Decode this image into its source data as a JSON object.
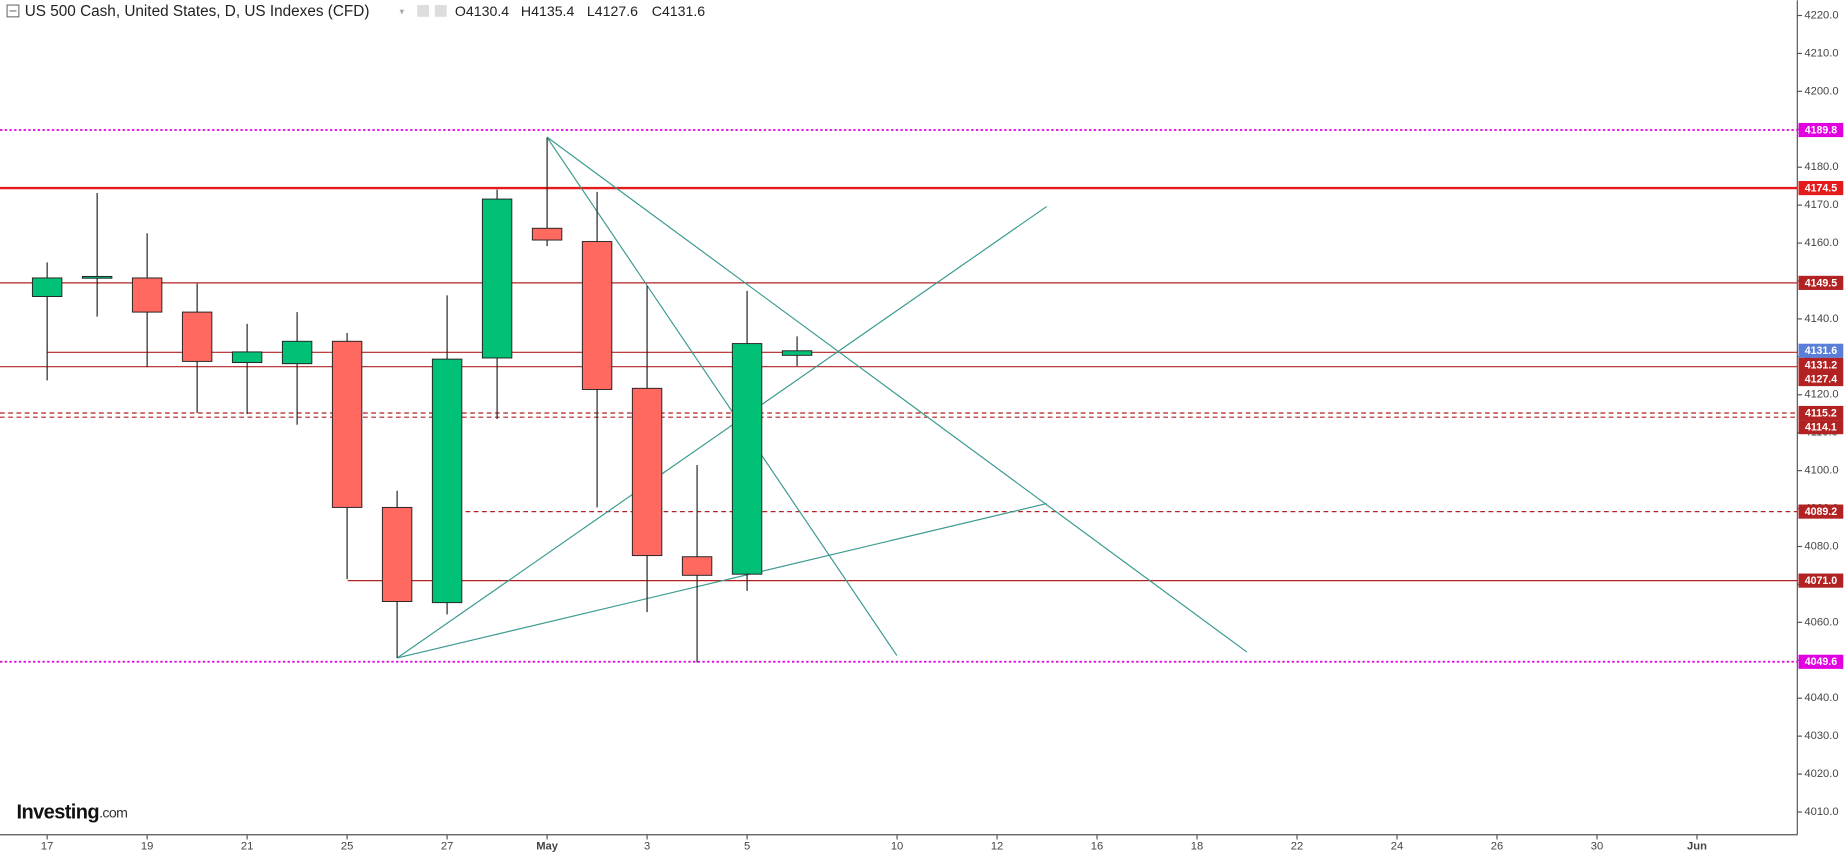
{
  "header": {
    "symbol": "US 500 Cash, United States, D, US Indexes (CFD)",
    "ohlc": [
      "O4130.4",
      "H4135.4",
      "L4127.6",
      "C4131.6"
    ]
  },
  "watermark": {
    "brand": "Investing",
    "suffix": ".com"
  },
  "chart_data": {
    "type": "candlestick",
    "categories": [
      "17",
      null,
      "19",
      null,
      "21",
      null,
      "25",
      null,
      "27",
      null,
      "May",
      null,
      "3",
      null,
      "5",
      null,
      null,
      "10",
      null,
      "12",
      null,
      "16",
      null,
      "18",
      null,
      "22",
      null,
      "24",
      null,
      "26",
      null,
      "30",
      null,
      "Jun"
    ],
    "open": [
      4145.9,
      4151.0,
      4150.8,
      4141.8,
      4128.5,
      4128.2,
      4134.1,
      4090.3,
      4065.2,
      4129.7,
      4163.9,
      4160.4,
      4121.7,
      4077.3,
      4072.7,
      4130.4,
      null,
      null,
      null,
      null,
      null,
      null,
      null,
      null,
      null,
      null,
      null,
      null,
      null,
      null,
      null,
      null,
      null,
      null
    ],
    "high": [
      4154.9,
      4173.2,
      4162.6,
      4149.3,
      4138.7,
      4141.8,
      4136.3,
      4094.7,
      4146.2,
      4174.1,
      4187.7,
      4173.5,
      4148.7,
      4101.5,
      4147.4,
      4135.4,
      null,
      null,
      null,
      null,
      null,
      null,
      null,
      null,
      null,
      null,
      null,
      null,
      null,
      null,
      null,
      null,
      null,
      null
    ],
    "low": [
      4123.8,
      4140.6,
      4127.3,
      4115.2,
      4114.9,
      4112.1,
      4071.4,
      4050.6,
      4062.1,
      4113.6,
      4159.2,
      4090.3,
      4062.7,
      4049.4,
      4068.3,
      4127.6,
      null,
      null,
      null,
      null,
      null,
      null,
      null,
      null,
      null,
      null,
      null,
      null,
      null,
      null,
      null,
      null,
      null,
      null
    ],
    "close": [
      4150.8,
      4151.2,
      4141.8,
      4128.8,
      4131.3,
      4134.1,
      4090.3,
      4065.5,
      4129.4,
      4171.6,
      4160.8,
      4121.4,
      4077.6,
      4072.4,
      4133.5,
      4131.6,
      null,
      null,
      null,
      null,
      null,
      null,
      null,
      null,
      null,
      null,
      null,
      null,
      null,
      null,
      null,
      null,
      null,
      null
    ],
    "up_color": "#00c176",
    "down_color": "#ff6960",
    "ylim": [
      4004,
      4224
    ],
    "yticks": [
      {
        "value": 4010,
        "label": "4010.0"
      },
      {
        "value": 4020,
        "label": "4020.0"
      },
      {
        "value": 4030,
        "label": "4030.0"
      },
      {
        "value": 4040,
        "label": "4040.0"
      },
      {
        "value": 4050,
        "label": "4050.0"
      },
      {
        "value": 4060,
        "label": "4060.0"
      },
      {
        "value": 4070,
        "label": "4070.0"
      },
      {
        "value": 4080,
        "label": "4080.0"
      },
      {
        "value": 4090,
        "label": "4090.0"
      },
      {
        "value": 4100,
        "label": "4100.0"
      },
      {
        "value": 4110,
        "label": "4110.0"
      },
      {
        "value": 4120,
        "label": "4120.0"
      },
      {
        "value": 4130,
        "label": "4130.0"
      },
      {
        "value": 4140,
        "label": "4140.0"
      },
      {
        "value": 4150,
        "label": "4150.0"
      },
      {
        "value": 4160,
        "label": "4160.0"
      },
      {
        "value": 4170,
        "label": "4170.0"
      },
      {
        "value": 4180,
        "label": "4180.0"
      },
      {
        "value": 4190,
        "label": "4190.0"
      },
      {
        "value": 4200,
        "label": "4200.0"
      },
      {
        "value": 4210,
        "label": "4210.0"
      },
      {
        "value": 4220,
        "label": "4220.0"
      }
    ],
    "levels": [
      {
        "value": 4189.8,
        "label": "4189.8",
        "color": "#e000e0",
        "style": "dotted"
      },
      {
        "value": 4174.5,
        "label": "4174.5",
        "color": "#e31b1b",
        "style": "thick"
      },
      {
        "value": 4149.5,
        "label": "4149.5",
        "color": "#b22222",
        "style": "solid"
      },
      {
        "value": 4131.6,
        "label": "4131.6",
        "color": "#5b7fd6",
        "style": "none"
      },
      {
        "value": 4131.2,
        "label": "4131.2",
        "color": "#b22222",
        "style": "solid"
      },
      {
        "value": 4127.4,
        "label": "4127.4",
        "color": "#b22222",
        "style": "solid"
      },
      {
        "value": 4115.2,
        "label": "4115.2",
        "color": "#b22222",
        "style": "dashed"
      },
      {
        "value": 4114.1,
        "label": "4114.1",
        "color": "#b22222",
        "style": "dashed"
      },
      {
        "value": 4089.2,
        "label": "4089.2",
        "color": "#b22222",
        "style": "dashed"
      },
      {
        "value": 4071.0,
        "label": "4071.0",
        "color": "#b22222",
        "style": "solid"
      },
      {
        "value": 4049.6,
        "label": "4049.6",
        "color": "#e000e0",
        "style": "dotted"
      }
    ]
  }
}
